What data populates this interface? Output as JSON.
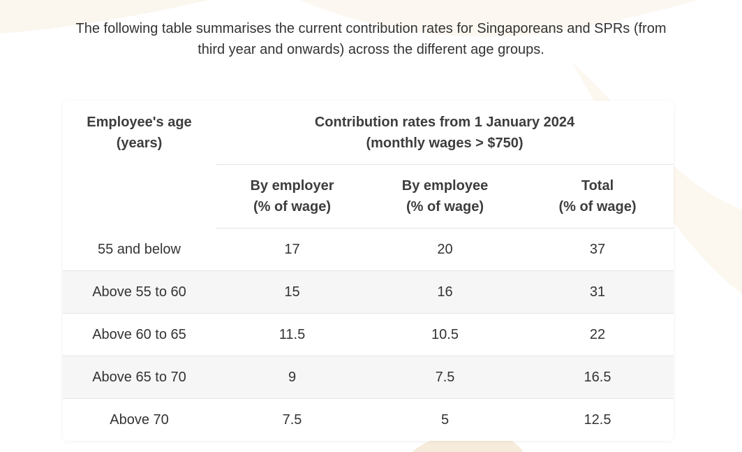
{
  "intro": {
    "line1": "The following table summarises the current contribution rates for Singaporeans and SPRs (from",
    "line2": "third year and onwards) across the different age groups."
  },
  "table": {
    "age_header": {
      "line1": "Employee's age",
      "line2": "(years)"
    },
    "group_header": {
      "line1": "Contribution rates from 1 January 2024",
      "line2": "(monthly wages > $750)"
    },
    "columns": [
      {
        "line1": "By employer",
        "line2": "(% of wage)"
      },
      {
        "line1": "By employee",
        "line2": "(% of wage)"
      },
      {
        "line1": "Total",
        "line2": "(% of wage)"
      }
    ],
    "rows": [
      {
        "age": "55 and below",
        "employer": "17",
        "employee": "20",
        "total": "37"
      },
      {
        "age": "Above 55 to 60",
        "employer": "15",
        "employee": "16",
        "total": "31"
      },
      {
        "age": "Above 60 to 65",
        "employer": "11.5",
        "employee": "10.5",
        "total": "22"
      },
      {
        "age": "Above 65 to 70",
        "employer": "9",
        "employee": "7.5",
        "total": "16.5"
      },
      {
        "age": "Above 70",
        "employer": "7.5",
        "employee": "5",
        "total": "12.5"
      }
    ]
  },
  "colors": {
    "text": "#333333",
    "header_text": "#3d3d3d",
    "stripe": "#f6f6f6",
    "border": "#e4e4e4",
    "background_accent": "#faf4ea"
  }
}
